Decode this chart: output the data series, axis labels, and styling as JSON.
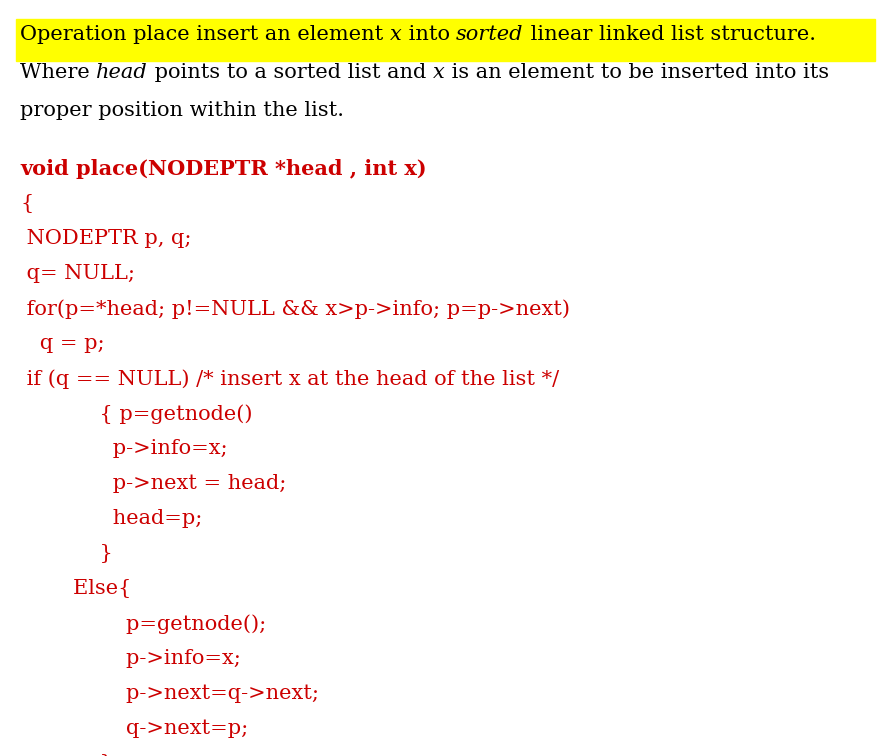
{
  "bg_color": "#ffffff",
  "highlight_color": "#ffff00",
  "text_color_red": "#cc0000",
  "text_color_black": "#000000",
  "figsize": [
    8.91,
    7.56
  ],
  "dpi": 100,
  "desc_fontsize": 15,
  "code_fontsize": 15,
  "desc_line1_parts": [
    [
      "Operation place insert an element ",
      false,
      false
    ],
    [
      "x",
      false,
      true
    ],
    [
      " into ",
      false,
      false
    ],
    [
      "sorted",
      false,
      true
    ],
    [
      " linear linked list structure.",
      false,
      false
    ]
  ],
  "desc_line2_parts": [
    [
      "Where ",
      false,
      false
    ],
    [
      "head",
      false,
      true
    ],
    [
      " points to a sorted list and ",
      false,
      false
    ],
    [
      "x",
      false,
      true
    ],
    [
      " is an element to be inserted into its",
      false,
      false
    ]
  ],
  "desc_line3": "proper position within the list.",
  "code_lines": [
    {
      "text": "void place(NODEPTR *head , int x)",
      "bold": true
    },
    {
      "text": "{",
      "bold": false
    },
    {
      "text": " NODEPTR p, q;",
      "bold": false
    },
    {
      "text": " q= NULL;",
      "bold": false
    },
    {
      "text": " for(p=*head; p!=NULL && x>p->info; p=p->next)",
      "bold": false
    },
    {
      "text": "   q = p;",
      "bold": false
    },
    {
      "text": " if (q == NULL) /* insert x at the head of the list */",
      "bold": false
    },
    {
      "text": "            { p=getnode()",
      "bold": false
    },
    {
      "text": "              p->info=x;",
      "bold": false
    },
    {
      "text": "              p->next = head;",
      "bold": false
    },
    {
      "text": "              head=p;",
      "bold": false
    },
    {
      "text": "            }",
      "bold": false
    },
    {
      "text": "        Else{",
      "bold": false
    },
    {
      "text": "                p=getnode();",
      "bold": false
    },
    {
      "text": "                p->info=x;",
      "bold": false
    },
    {
      "text": "                p->next=q->next;",
      "bold": false
    },
    {
      "text": "                q->next=p;",
      "bold": false
    },
    {
      "text": "            }",
      "bold": false
    },
    {
      "text": "}",
      "bold": false
    }
  ]
}
